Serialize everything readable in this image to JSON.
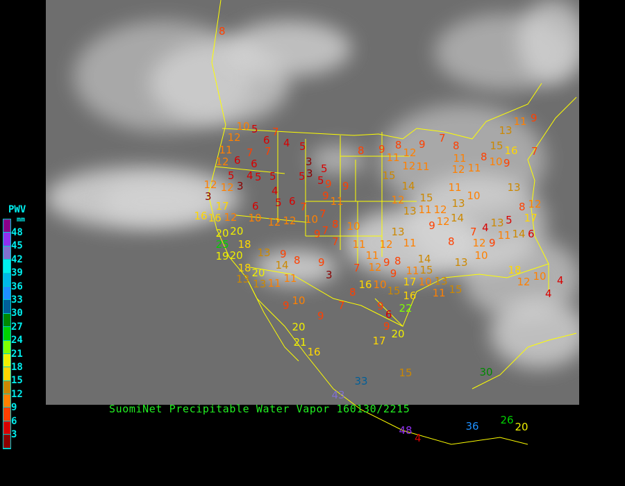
{
  "title": "SuomiNet Precipitable Water Vapor 160130/2215",
  "legend": {
    "title": "PWV",
    "unit": "mm",
    "labels": [
      "48",
      "45",
      "42",
      "39",
      "36",
      "33",
      "30",
      "27",
      "24",
      "21",
      "18",
      "15",
      "12",
      "9",
      "6",
      "3"
    ],
    "colors_top_to_bottom": [
      "#8a008a",
      "#9030f0",
      "#8070d0",
      "#00eeee",
      "#00b8e8",
      "#1e90ff",
      "#005f99",
      "#008800",
      "#00d000",
      "#80ff00",
      "#f0f000",
      "#ffd700",
      "#cc8800",
      "#ff8000",
      "#ff4000",
      "#d80000",
      "#8b0000"
    ]
  },
  "stations": [
    "8",
    "10",
    "5",
    "7",
    "12",
    "6",
    "7",
    "4",
    "5",
    "11",
    "7",
    "6",
    "12",
    "6",
    "3",
    "5",
    "12",
    "5",
    "4",
    "5",
    "5",
    "5",
    "5",
    "3",
    "3",
    "9",
    "12",
    "3",
    "9",
    "4",
    "5",
    "6",
    "7",
    "17",
    "6",
    "9",
    "16",
    "12",
    "10",
    "12",
    "12",
    "7",
    "10",
    "8",
    "11",
    "10",
    "9",
    "18",
    "20",
    "7",
    "7",
    "16",
    "20",
    "20",
    "19",
    "25",
    "18",
    "20",
    "13",
    "13",
    "9",
    "14",
    "8",
    "9",
    "13",
    "10",
    "11",
    "9",
    "3",
    "11",
    "7",
    "11",
    "12",
    "11",
    "12",
    "9",
    "8",
    "9",
    "8",
    "12",
    "9",
    "8",
    "9",
    "11",
    "12",
    "11",
    "15",
    "14",
    "12",
    "13",
    "11",
    "15",
    "12",
    "13",
    "11",
    "14",
    "15",
    "11",
    "10",
    "17",
    "13",
    "11",
    "15",
    "12",
    "13",
    "14",
    "11",
    "10",
    "9",
    "8",
    "13",
    "10",
    "9",
    "12",
    "12",
    "11",
    "8",
    "8",
    "7",
    "11",
    "10",
    "9",
    "13",
    "11",
    "14",
    "13",
    "16",
    "15",
    "13",
    "11",
    "9",
    "7",
    "8",
    "12",
    "17",
    "18",
    "12",
    "10",
    "4",
    "4",
    "7",
    "4",
    "5",
    "6",
    "7",
    "9",
    "8",
    "16",
    "10",
    "15",
    "16",
    "9",
    "6",
    "17",
    "22",
    "9",
    "20",
    "20",
    "21",
    "16",
    "15",
    "33",
    "30",
    "43",
    "48",
    "4",
    "36",
    "26",
    "20"
  ]
}
